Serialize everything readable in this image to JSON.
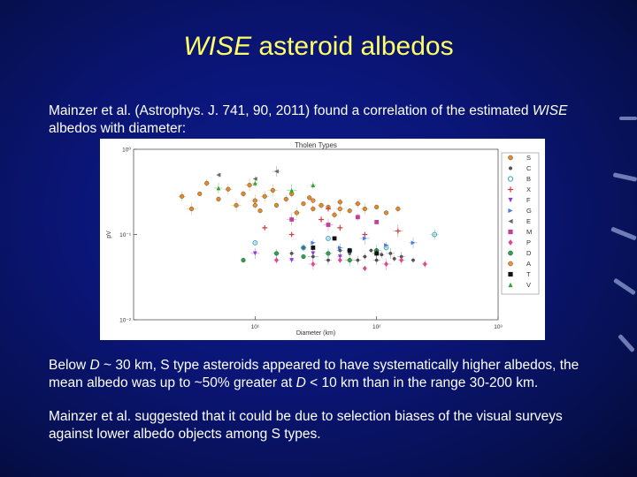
{
  "slide": {
    "title_italic": "WISE",
    "title_rest": " asteroid albedos",
    "p1_a": "Mainzer et al. (Astrophys. J. 741, 90, 2011) found a correlation of the estimated ",
    "p1_italic": "WISE",
    "p1_b": " albedos with diameter:",
    "p2_a": "Below ",
    "p2_D1": "D",
    "p2_b": " ~ 30 km, S type asteroids appeared to have systematically higher albedos, the mean albedo was up to ~50% greater at ",
    "p2_D2": "D",
    "p2_c": " < 10 km than in the range 30-200 km.",
    "p3": "Mainzer et al. suggested that it could be due to selection biases of the visual surveys against lower albedo objects among S types."
  },
  "chart_data": {
    "type": "scatter",
    "title": "Tholen Types",
    "xlabel": "Diameter (km)",
    "ylabel": "pV",
    "x_scale": "log",
    "y_scale": "log",
    "xlim": [
      1,
      1000
    ],
    "ylim": [
      0.01,
      1
    ],
    "x_ticks": [
      {
        "value": 10,
        "label": "10¹"
      },
      {
        "value": 100,
        "label": "10²"
      },
      {
        "value": 1000,
        "label": "10³"
      }
    ],
    "y_ticks": [
      {
        "value": 1,
        "label": "10⁰"
      },
      {
        "value": 0.1,
        "label": "10⁻¹"
      },
      {
        "value": 0.01,
        "label": "10⁻²"
      }
    ],
    "legend_position": "right",
    "series": [
      {
        "name": "S",
        "color": "#e08a2e",
        "marker": "circle",
        "points": [
          [
            3.5,
            0.3
          ],
          [
            5,
            0.26
          ],
          [
            6,
            0.34
          ],
          [
            8,
            0.3
          ],
          [
            10,
            0.25
          ],
          [
            12,
            0.28
          ],
          [
            15,
            0.22
          ],
          [
            18,
            0.26
          ],
          [
            20,
            0.3
          ],
          [
            25,
            0.23
          ],
          [
            30,
            0.2
          ],
          [
            35,
            0.22
          ],
          [
            40,
            0.21
          ],
          [
            50,
            0.24
          ],
          [
            60,
            0.19
          ],
          [
            70,
            0.23
          ],
          [
            80,
            0.2
          ],
          [
            100,
            0.21
          ],
          [
            120,
            0.18
          ],
          [
            150,
            0.2
          ],
          [
            4,
            0.4
          ],
          [
            7,
            0.22
          ],
          [
            9,
            0.38
          ],
          [
            14,
            0.33
          ],
          [
            22,
            0.18
          ],
          [
            45,
            0.17
          ],
          [
            3,
            0.2
          ],
          [
            2.5,
            0.28
          ],
          [
            28,
            0.27
          ],
          [
            11,
            0.19
          ]
        ]
      },
      {
        "name": "C",
        "color": "#555555",
        "marker": "circle-small",
        "points": [
          [
            20,
            0.06
          ],
          [
            30,
            0.055
          ],
          [
            40,
            0.05
          ],
          [
            60,
            0.06
          ],
          [
            80,
            0.055
          ],
          [
            100,
            0.05
          ],
          [
            130,
            0.06
          ],
          [
            160,
            0.055
          ],
          [
            200,
            0.05
          ],
          [
            25,
            0.07
          ],
          [
            50,
            0.065
          ],
          [
            70,
            0.05
          ],
          [
            90,
            0.065
          ],
          [
            110,
            0.058
          ],
          [
            140,
            0.052
          ]
        ]
      },
      {
        "name": "B",
        "color": "#3aa6b8",
        "marker": "circle-open",
        "points": [
          [
            10,
            0.08
          ],
          [
            25,
            0.07
          ],
          [
            40,
            0.09
          ],
          [
            60,
            0.065
          ],
          [
            120,
            0.07
          ],
          [
            300,
            0.1
          ]
        ]
      },
      {
        "name": "X",
        "color": "#d43c3c",
        "marker": "plus",
        "points": [
          [
            12,
            0.12
          ],
          [
            20,
            0.1
          ],
          [
            35,
            0.15
          ],
          [
            50,
            0.12
          ],
          [
            80,
            0.1
          ],
          [
            40,
            0.2
          ],
          [
            150,
            0.11
          ]
        ]
      },
      {
        "name": "F",
        "color": "#8d3fd0",
        "marker": "triangle-down",
        "points": [
          [
            10,
            0.06
          ],
          [
            20,
            0.05
          ],
          [
            30,
            0.06
          ],
          [
            50,
            0.055
          ]
        ]
      },
      {
        "name": "G",
        "color": "#4c7adf",
        "marker": "triangle-right",
        "points": [
          [
            30,
            0.08
          ],
          [
            50,
            0.07
          ],
          [
            80,
            0.09
          ],
          [
            120,
            0.075
          ],
          [
            200,
            0.08
          ]
        ]
      },
      {
        "name": "E",
        "color": "#6a6a6a",
        "marker": "triangle-left",
        "points": [
          [
            5,
            0.5
          ],
          [
            10,
            0.45
          ],
          [
            15,
            0.55
          ]
        ]
      },
      {
        "name": "M",
        "color": "#c0409b",
        "marker": "square",
        "points": [
          [
            20,
            0.15
          ],
          [
            40,
            0.13
          ],
          [
            70,
            0.16
          ],
          [
            100,
            0.14
          ]
        ]
      },
      {
        "name": "P",
        "color": "#e04890",
        "marker": "diamond",
        "points": [
          [
            15,
            0.05
          ],
          [
            30,
            0.045
          ],
          [
            50,
            0.05
          ],
          [
            80,
            0.04
          ],
          [
            120,
            0.045
          ],
          [
            160,
            0.05
          ],
          [
            250,
            0.045
          ]
        ]
      },
      {
        "name": "D",
        "color": "#2ea04e",
        "marker": "circle",
        "points": [
          [
            8,
            0.05
          ],
          [
            15,
            0.06
          ],
          [
            25,
            0.055
          ],
          [
            40,
            0.06
          ],
          [
            60,
            0.05
          ],
          [
            100,
            0.065
          ]
        ]
      },
      {
        "name": "A",
        "color": "#e8913a",
        "marker": "circle",
        "points": [
          [
            10,
            0.22
          ],
          [
            30,
            0.25
          ],
          [
            50,
            0.2
          ]
        ]
      },
      {
        "name": "T",
        "color": "#111111",
        "marker": "square",
        "points": [
          [
            30,
            0.07
          ],
          [
            60,
            0.065
          ],
          [
            100,
            0.06
          ],
          [
            45,
            0.09
          ]
        ]
      },
      {
        "name": "V",
        "color": "#31a531",
        "marker": "triangle-up",
        "points": [
          [
            5,
            0.35
          ],
          [
            10,
            0.4
          ],
          [
            20,
            0.33
          ],
          [
            30,
            0.38
          ]
        ]
      }
    ]
  }
}
